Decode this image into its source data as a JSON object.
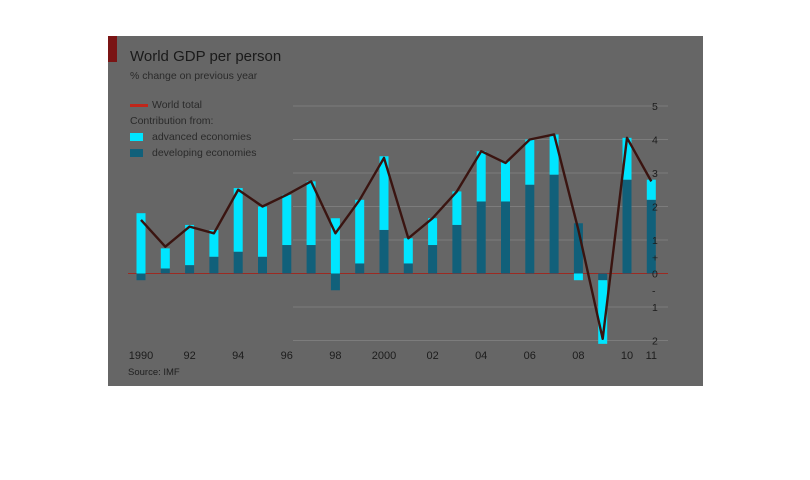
{
  "chart_data": {
    "type": "bar",
    "title": "World GDP per person",
    "subtitle": "% change on previous year",
    "source": "Source: IMF",
    "legend": {
      "line": "World total",
      "heading": "Contribution from:",
      "bars": [
        "advanced economies",
        "developing economies"
      ]
    },
    "x": [
      1990,
      1991,
      1992,
      1993,
      1994,
      1995,
      1996,
      1997,
      1998,
      1999,
      2000,
      2001,
      2002,
      2003,
      2004,
      2005,
      2006,
      2007,
      2008,
      2009,
      2010,
      2011
    ],
    "x_tick_labels": [
      {
        "x": 1990,
        "label": "1990"
      },
      {
        "x": 1992,
        "label": "92"
      },
      {
        "x": 1994,
        "label": "94"
      },
      {
        "x": 1996,
        "label": "96"
      },
      {
        "x": 1998,
        "label": "98"
      },
      {
        "x": 2000,
        "label": "2000"
      },
      {
        "x": 2002,
        "label": "02"
      },
      {
        "x": 2004,
        "label": "04"
      },
      {
        "x": 2006,
        "label": "06"
      },
      {
        "x": 2008,
        "label": "08"
      },
      {
        "x": 2010,
        "label": "10"
      },
      {
        "x": 2011,
        "label": "11"
      }
    ],
    "series": [
      {
        "name": "advanced economies",
        "color": "#00e5ff",
        "values": [
          1.8,
          0.6,
          1.2,
          0.8,
          1.9,
          1.5,
          1.5,
          1.9,
          1.65,
          1.9,
          2.2,
          0.75,
          0.8,
          1.0,
          1.5,
          1.2,
          1.35,
          1.2,
          -0.2,
          -1.9,
          1.25,
          0.6
        ]
      },
      {
        "name": "developing economies",
        "color": "#11607a",
        "values": [
          -0.2,
          0.15,
          0.25,
          0.5,
          0.65,
          0.5,
          0.85,
          0.85,
          -0.5,
          0.3,
          1.3,
          0.3,
          0.85,
          1.45,
          2.15,
          2.15,
          2.65,
          2.95,
          1.5,
          -0.2,
          2.8,
          2.2
        ]
      },
      {
        "name": "World total",
        "color": "#c0261a",
        "values": [
          1.6,
          0.8,
          1.4,
          1.2,
          2.5,
          2.0,
          2.35,
          2.75,
          1.2,
          2.2,
          3.45,
          1.05,
          1.65,
          2.45,
          3.65,
          3.3,
          4.0,
          4.15,
          1.3,
          -1.95,
          4.05,
          2.75
        ]
      }
    ],
    "y_tick_labels": [
      "5",
      "4",
      "3",
      "2",
      "1",
      "+",
      "0",
      "-",
      "1",
      "2"
    ],
    "ylim": [
      -2,
      5
    ],
    "grid": true,
    "legend_placement": "top-left"
  }
}
